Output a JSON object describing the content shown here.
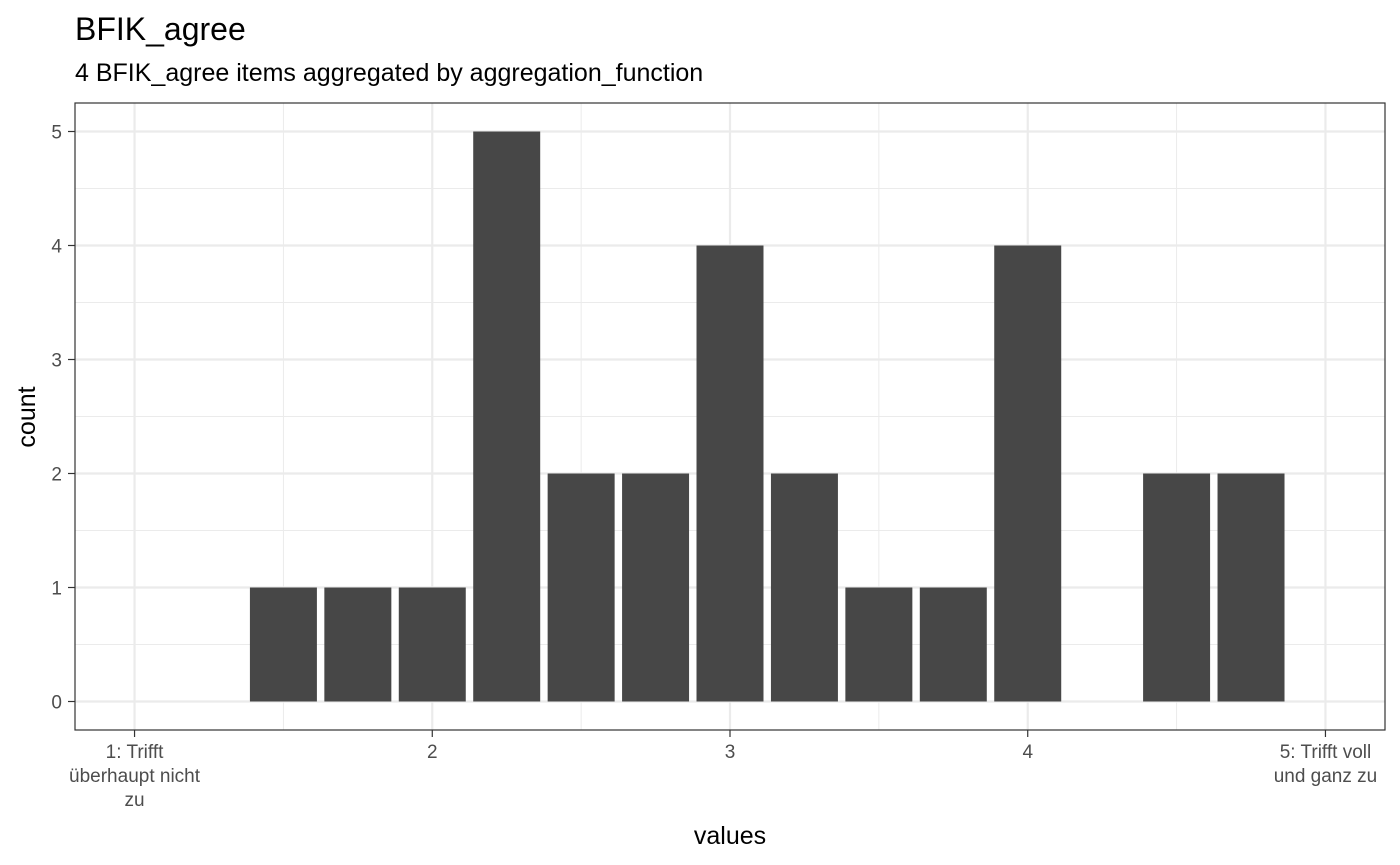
{
  "chart_data": {
    "type": "bar",
    "title": "BFIK_agree",
    "subtitle": "4 BFIK_agree items aggregated by aggregation_function",
    "xlabel": "values",
    "ylabel": "count",
    "x": [
      1.5,
      1.75,
      2.0,
      2.25,
      2.5,
      2.75,
      3.0,
      3.25,
      3.5,
      3.75,
      4.0,
      4.5,
      4.75
    ],
    "values": [
      1,
      1,
      1,
      5,
      2,
      2,
      4,
      2,
      1,
      1,
      4,
      2,
      2
    ],
    "bar_width": 0.225,
    "xlim": [
      0.8,
      5.2
    ],
    "ylim": [
      -0.25,
      5.25
    ],
    "x_ticks": [
      {
        "value": 1,
        "label": "1: Trifft\nüberhaupt nicht\nzu"
      },
      {
        "value": 2,
        "label": "2"
      },
      {
        "value": 3,
        "label": "3"
      },
      {
        "value": 4,
        "label": "4"
      },
      {
        "value": 5,
        "label": "5: Trifft voll\nund ganz zu"
      }
    ],
    "y_ticks": [
      0,
      1,
      2,
      3,
      4,
      5
    ],
    "grid": true,
    "bar_color": "#474747",
    "grid_color": "#ebebeb",
    "panel_border_color": "#333333"
  }
}
